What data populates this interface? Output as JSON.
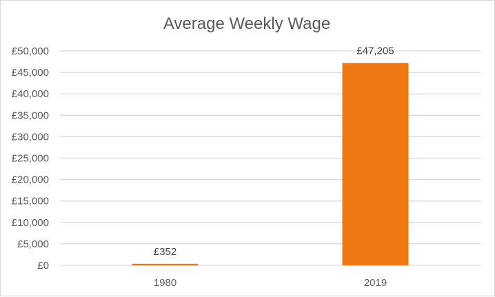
{
  "chart_data": {
    "type": "bar",
    "title": "Average Weekly Wage",
    "xlabel": "",
    "ylabel": "",
    "categories": [
      "1980",
      "2019"
    ],
    "values": [
      352,
      47205
    ],
    "data_labels": [
      "£352",
      "£47,205"
    ],
    "ylim": [
      0,
      50000
    ],
    "y_ticks": [
      0,
      5000,
      10000,
      15000,
      20000,
      25000,
      30000,
      35000,
      40000,
      45000,
      50000
    ],
    "y_tick_labels": [
      "£0",
      "£5,000",
      "£10,000",
      "£15,000",
      "£20,000",
      "£25,000",
      "£30,000",
      "£35,000",
      "£40,000",
      "£45,000",
      "£50,000"
    ],
    "grid": true,
    "legend": "none",
    "colors": {
      "bar": "#f07812",
      "grid": "#d9d9d9",
      "text": "#595959"
    }
  }
}
